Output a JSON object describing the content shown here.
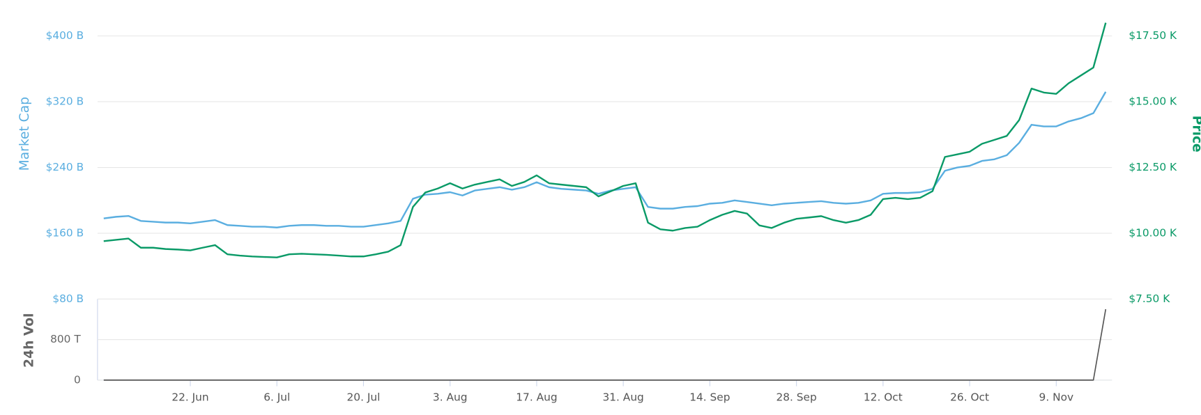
{
  "chart_data": {
    "type": "line",
    "x": [
      "8. Jun",
      "10. Jun",
      "12. Jun",
      "14. Jun",
      "16. Jun",
      "18. Jun",
      "20. Jun",
      "22. Jun",
      "24. Jun",
      "26. Jun",
      "28. Jun",
      "30. Jun",
      "2. Jul",
      "4. Jul",
      "6. Jul",
      "8. Jul",
      "10. Jul",
      "12. Jul",
      "14. Jul",
      "16. Jul",
      "18. Jul",
      "20. Jul",
      "22. Jul",
      "24. Jul",
      "26. Jul",
      "28. Jul",
      "30. Jul",
      "1. Aug",
      "3. Aug",
      "5. Aug",
      "7. Aug",
      "9. Aug",
      "11. Aug",
      "13. Aug",
      "15. Aug",
      "17. Aug",
      "19. Aug",
      "21. Aug",
      "23. Aug",
      "25. Aug",
      "27. Aug",
      "29. Aug",
      "31. Aug",
      "2. Sep",
      "4. Sep",
      "6. Sep",
      "8. Sep",
      "10. Sep",
      "12. Sep",
      "14. Sep",
      "16. Sep",
      "18. Sep",
      "20. Sep",
      "22. Sep",
      "24. Sep",
      "26. Sep",
      "28. Sep",
      "30. Sep",
      "2. Oct",
      "4. Oct",
      "6. Oct",
      "8. Oct",
      "10. Oct",
      "12. Oct",
      "14. Oct",
      "16. Oct",
      "18. Oct",
      "20. Oct",
      "22. Oct",
      "24. Oct",
      "26. Oct",
      "28. Oct",
      "30. Oct",
      "1. Nov",
      "3. Nov",
      "5. Nov",
      "7. Nov",
      "9. Nov",
      "11. Nov",
      "13. Nov",
      "15. Nov",
      "17. Nov"
    ],
    "xticks": [
      "22. Jun",
      "6. Jul",
      "20. Jul",
      "3. Aug",
      "17. Aug",
      "31. Aug",
      "14. Sep",
      "28. Sep",
      "12. Oct",
      "26. Oct",
      "9. Nov"
    ],
    "y_label": "Market Cap",
    "y2_label": "Price",
    "y3_label": "24h Vol",
    "ylim": [
      80,
      400
    ],
    "yticks": [
      {
        "value": 80,
        "label": "$80 B"
      },
      {
        "value": 160,
        "label": "$160 B"
      },
      {
        "value": 240,
        "label": "$240 B"
      },
      {
        "value": 320,
        "label": "$320 B"
      },
      {
        "value": 400,
        "label": "$400 B"
      }
    ],
    "y2lim": [
      7.5,
      17.5
    ],
    "y2ticks": [
      {
        "value": 7.5,
        "label": "$7.50 K"
      },
      {
        "value": 10,
        "label": "$10.00 K"
      },
      {
        "value": 12.5,
        "label": "$12.50 K"
      },
      {
        "value": 15,
        "label": "$15.00 K"
      },
      {
        "value": 17.5,
        "label": "$17.50 K"
      }
    ],
    "y3lim": [
      0,
      1600
    ],
    "y3ticks": [
      0,
      {
        "value": 800,
        "label": "800 T"
      }
    ],
    "grid": true,
    "series": [
      {
        "name": "Market Cap",
        "color": "#5aaee0",
        "values": [
          178,
          180,
          181,
          175,
          174,
          173,
          173,
          172,
          174,
          176,
          170,
          169,
          168,
          168,
          167,
          169,
          170,
          170,
          169,
          169,
          168,
          168,
          170,
          172,
          175,
          202,
          207,
          208,
          210,
          206,
          212,
          214,
          216,
          213,
          216,
          222,
          216,
          214,
          213,
          212,
          208,
          212,
          214,
          216,
          192,
          190,
          190,
          192,
          193,
          196,
          197,
          200,
          198,
          196,
          194,
          196,
          197,
          198,
          199,
          197,
          196,
          197,
          200,
          208,
          209,
          209,
          210,
          214,
          236,
          240,
          242,
          248,
          250,
          255,
          270,
          292,
          290,
          290,
          296,
          300,
          306,
          332
        ]
      },
      {
        "name": "Price",
        "color": "#0a9a67",
        "axis": "y2",
        "values": [
          9.7,
          9.75,
          9.8,
          9.45,
          9.45,
          9.4,
          9.38,
          9.35,
          9.45,
          9.55,
          9.2,
          9.15,
          9.12,
          9.1,
          9.08,
          9.2,
          9.22,
          9.2,
          9.18,
          9.15,
          9.12,
          9.12,
          9.2,
          9.3,
          9.55,
          11.0,
          11.55,
          11.7,
          11.9,
          11.7,
          11.85,
          11.95,
          12.05,
          11.8,
          11.95,
          12.2,
          11.9,
          11.85,
          11.8,
          11.75,
          11.4,
          11.6,
          11.8,
          11.9,
          10.4,
          10.15,
          10.1,
          10.2,
          10.25,
          10.5,
          10.7,
          10.85,
          10.75,
          10.3,
          10.2,
          10.4,
          10.55,
          10.6,
          10.65,
          10.5,
          10.4,
          10.5,
          10.7,
          11.3,
          11.35,
          11.3,
          11.35,
          11.6,
          12.9,
          13.0,
          13.1,
          13.4,
          13.55,
          13.7,
          14.3,
          15.5,
          15.35,
          15.3,
          15.7,
          16.0,
          16.3,
          18.0
        ]
      },
      {
        "name": "24h Vol",
        "color": "#555555",
        "axis": "y3",
        "values": [
          0,
          0,
          0,
          0,
          0,
          0,
          0,
          0,
          0,
          0,
          0,
          0,
          0,
          0,
          0,
          0,
          0,
          0,
          0,
          0,
          0,
          0,
          0,
          0,
          0,
          0,
          0,
          0,
          0,
          0,
          0,
          0,
          0,
          0,
          0,
          0,
          0,
          0,
          0,
          0,
          0,
          0,
          0,
          0,
          0,
          0,
          0,
          0,
          0,
          0,
          0,
          0,
          0,
          0,
          0,
          0,
          0,
          0,
          0,
          0,
          0,
          0,
          0,
          0,
          0,
          0,
          0,
          0,
          0,
          0,
          0,
          0,
          0,
          0,
          0,
          0,
          0,
          0,
          0,
          0,
          0,
          1400
        ]
      }
    ]
  }
}
